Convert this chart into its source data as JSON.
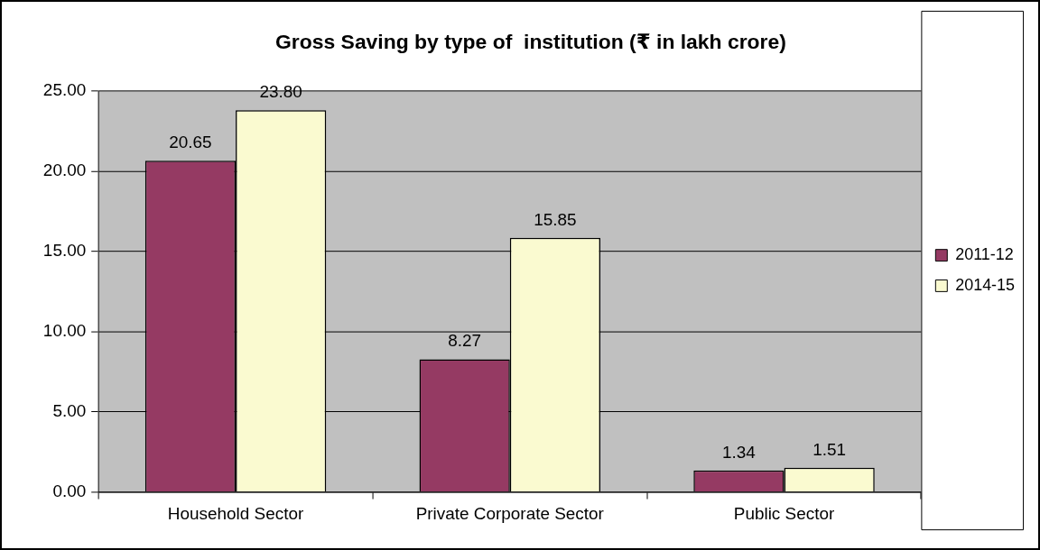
{
  "chart_data": {
    "type": "bar",
    "title": "Gross Saving by type of  institution (₹ in lakh crore)",
    "categories": [
      "Household Sector",
      "Private Corporate Sector",
      "Public Sector"
    ],
    "series": [
      {
        "name": "2011-12",
        "color": "#953a63",
        "values": [
          20.65,
          8.27,
          1.34
        ],
        "value_labels": [
          "20.65",
          "8.27",
          "1.34"
        ]
      },
      {
        "name": "2014-15",
        "color": "#fafad0",
        "values": [
          23.8,
          15.85,
          1.51
        ],
        "value_labels": [
          "23.80",
          "15.85",
          "1.51"
        ]
      }
    ],
    "ylim": [
      0,
      25
    ],
    "yticks": [
      {
        "value": 0,
        "label": "0.00"
      },
      {
        "value": 5,
        "label": "5.00"
      },
      {
        "value": 10,
        "label": "10.00"
      },
      {
        "value": 15,
        "label": "15.00"
      },
      {
        "value": 20,
        "label": "20.00"
      },
      {
        "value": 25,
        "label": "25.00"
      }
    ],
    "grid": "y",
    "legend": "right"
  }
}
